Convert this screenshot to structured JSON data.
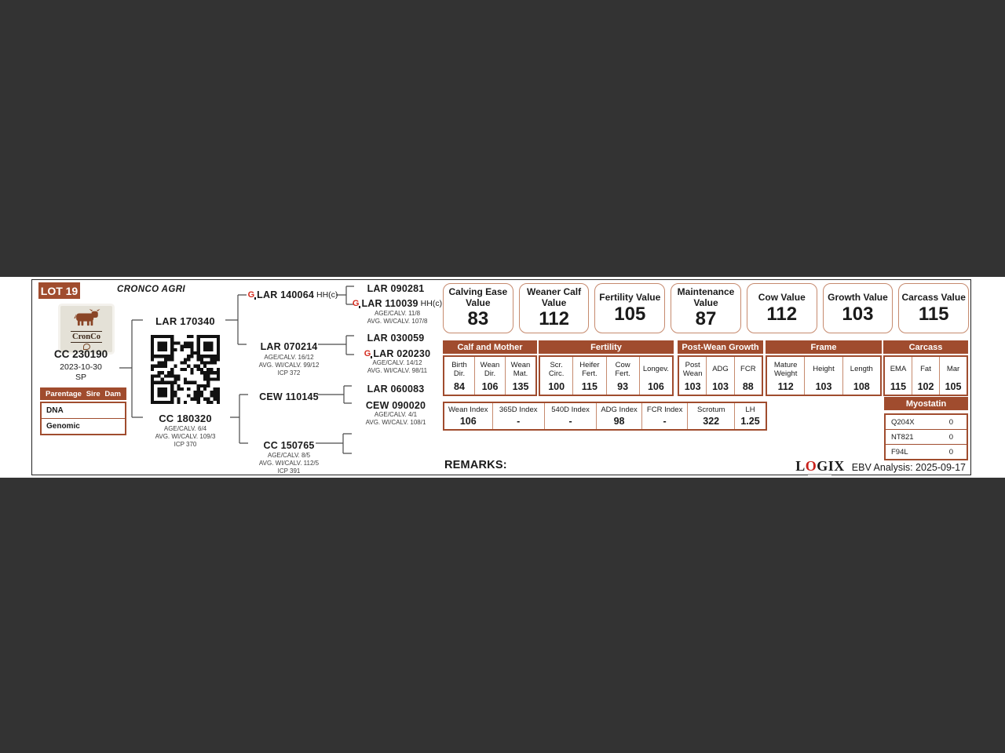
{
  "header": {
    "lot": "LOT 19",
    "farm": "CRONCO AGRI"
  },
  "brand": {
    "name": "CronCo"
  },
  "subject": {
    "id": "CC 230190",
    "birth_date": "2023-10-30",
    "code": "SP"
  },
  "parentage": {
    "title": "Parentage",
    "col_sire": "Sire",
    "col_dam": "Dam",
    "rows": [
      "DNA",
      "Genomic"
    ]
  },
  "pedigree": {
    "sire": "LAR 170340",
    "dam": {
      "name": "CC 180320",
      "d1": "AGE/CALV. 6/4",
      "d2": "AVG. WI/CALV. 109/3",
      "d3": "ICP 370"
    },
    "ss": {
      "name": "LAR 140064",
      "suffix": "HH(c)"
    },
    "sd": {
      "name": "LAR 070214",
      "d1": "AGE/CALV. 16/12",
      "d2": "AVG. WI/CALV. 99/12",
      "d3": "ICP 372"
    },
    "ds": "CEW 110145",
    "dd": {
      "name": "CC 150765",
      "d1": "AGE/CALV. 8/5",
      "d2": "AVG. WI/CALV. 112/5",
      "d3": "ICP 391"
    },
    "sss": "LAR 090281",
    "ssd": {
      "name": "LAR 110039",
      "suffix": "HH(c)",
      "d1": "AGE/CALV. 11/8",
      "d2": "AVG. WI/CALV. 107/8"
    },
    "sds": "LAR 030059",
    "sdd": {
      "name": "LAR 020230",
      "d1": "AGE/CALV. 14/12",
      "d2": "AVG. WI/CALV. 98/11"
    },
    "dss": "LAR 060083",
    "dsd": {
      "name": "CEW 090020",
      "d1": "AGE/CALV. 4/1",
      "d2": "AVG. WI/CALV. 108/1"
    }
  },
  "value_boxes": [
    {
      "label": "Calving Ease Value",
      "value": "83"
    },
    {
      "label": "Weaner Calf Value",
      "value": "112"
    },
    {
      "label": "Fertility Value",
      "value": "105"
    },
    {
      "label": "Maintenance Value",
      "value": "87"
    },
    {
      "label": "Cow Value",
      "value": "112"
    },
    {
      "label": "Growth Value",
      "value": "103"
    },
    {
      "label": "Carcass Value",
      "value": "115"
    }
  ],
  "ebv_tables": [
    {
      "title": "Calf and Mother",
      "cols": [
        {
          "label": "Birth Dir.",
          "value": "84"
        },
        {
          "label": "Wean Dir.",
          "value": "106"
        },
        {
          "label": "Wean Mat.",
          "value": "135"
        }
      ]
    },
    {
      "title": "Fertility",
      "cols": [
        {
          "label": "Scr. Circ.",
          "value": "100"
        },
        {
          "label": "Heifer Fert.",
          "value": "115"
        },
        {
          "label": "Cow Fert.",
          "value": "93"
        },
        {
          "label": "Longev.",
          "value": "106"
        }
      ]
    },
    {
      "title": "Post-Wean Growth",
      "cols": [
        {
          "label": "Post Wean",
          "value": "103"
        },
        {
          "label": "ADG",
          "value": "103"
        },
        {
          "label": "FCR",
          "value": "88"
        }
      ]
    },
    {
      "title": "Frame",
      "cols": [
        {
          "label": "Mature Weight",
          "value": "112"
        },
        {
          "label": "Height",
          "value": "103"
        },
        {
          "label": "Length",
          "value": "108"
        }
      ]
    },
    {
      "title": "Carcass",
      "cols": [
        {
          "label": "EMA",
          "value": "115"
        },
        {
          "label": "Fat",
          "value": "102"
        },
        {
          "label": "Mar",
          "value": "105"
        }
      ]
    }
  ],
  "index_row": [
    {
      "label": "Wean Index",
      "value": "106"
    },
    {
      "label": "365D Index",
      "value": "-"
    },
    {
      "label": "540D Index",
      "value": "-"
    },
    {
      "label": "ADG Index",
      "value": "98"
    },
    {
      "label": "FCR Index",
      "value": "-"
    },
    {
      "label": "Scrotum",
      "value": "322"
    },
    {
      "label": "LH",
      "value": "1.25"
    }
  ],
  "myostatin": {
    "title": "Myostatin",
    "rows": [
      {
        "gene": "Q204X",
        "value": "0"
      },
      {
        "gene": "NT821",
        "value": "0"
      },
      {
        "gene": "F94L",
        "value": "0"
      }
    ]
  },
  "footer": {
    "remarks": "REMARKS:",
    "logix": [
      "L",
      "O",
      "GIX"
    ],
    "analysis": "EBV Analysis: 2025-09-17"
  },
  "colors": {
    "accent": "#A04C2E",
    "value_box_border": "#C68A6E",
    "logo_red": "#C8201A",
    "page_bg": "#333333"
  }
}
